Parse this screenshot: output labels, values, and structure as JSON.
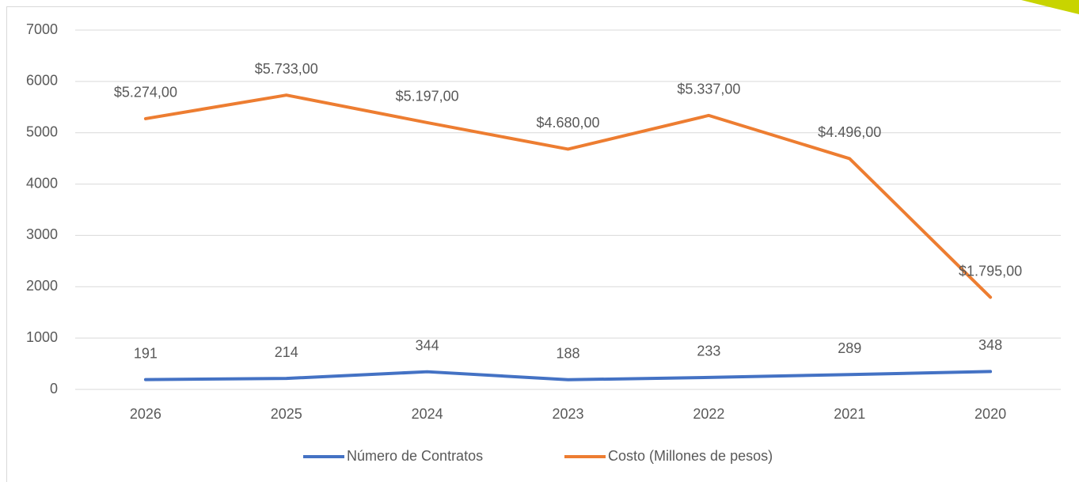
{
  "chart_data": {
    "type": "line",
    "categories": [
      "2026",
      "2025",
      "2024",
      "2023",
      "2022",
      "2021",
      "2020"
    ],
    "series": [
      {
        "name": "Número de Contratos",
        "color": "#4472c4",
        "values": [
          191,
          214,
          344,
          188,
          233,
          289,
          348
        ]
      },
      {
        "name": "Costo (Millones de pesos)",
        "color": "#ed7d31",
        "values": [
          5274,
          5733,
          5197,
          4680,
          5337,
          4496,
          1795
        ],
        "value_labels": [
          "$5.274,00",
          "$5.733,00",
          "$5.197,00",
          "$4.680,00",
          "$5.337,00",
          "$4.496,00",
          "$1.795,00"
        ]
      }
    ],
    "ylim": [
      0,
      7000
    ],
    "yticks": [
      0,
      1000,
      2000,
      3000,
      4000,
      5000,
      6000,
      7000
    ],
    "grid": true,
    "legend": "bottom"
  }
}
